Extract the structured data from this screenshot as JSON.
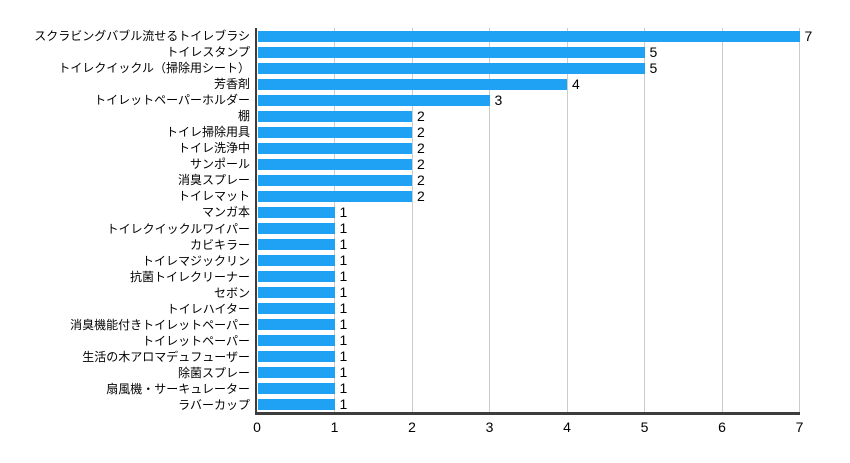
{
  "chart_data": {
    "type": "bar",
    "orientation": "horizontal",
    "title": "",
    "xlabel": "",
    "ylabel": "",
    "categories": [
      "スクラビングバブル流せるトイレブラシ",
      "トイレスタンプ",
      "トイレクイックル（掃除用シート）",
      "芳香剤",
      "トイレットペーパーホルダー",
      "棚",
      "トイレ掃除用具",
      "トイレ洗浄中",
      "サンポール",
      "消臭スプレー",
      "トイレマット",
      "マンガ本",
      "トイレクイックルワイパー",
      "カビキラー",
      "トイレマジックリン",
      "抗菌トイレクリーナー",
      "セボン",
      "トイレハイター",
      "消臭機能付きトイレットペーパー",
      "トイレットペーパー",
      "生活の木アロマデュフューザー",
      "除菌スプレー",
      "扇風機・サーキュレーター",
      "ラバーカップ"
    ],
    "values": [
      7,
      5,
      5,
      4,
      3,
      2,
      2,
      2,
      2,
      2,
      2,
      1,
      1,
      1,
      1,
      1,
      1,
      1,
      1,
      1,
      1,
      1,
      1,
      1
    ],
    "value_labels": [
      "7",
      "5",
      "5",
      "4",
      "3",
      "2",
      "2",
      "2",
      "2",
      "2",
      "2",
      "1",
      "1",
      "1",
      "1",
      "1",
      "1",
      "1",
      "1",
      "1",
      "1",
      "1",
      "1",
      "1"
    ],
    "xlim": [
      0,
      7
    ],
    "x_ticks": [
      "0",
      "1",
      "2",
      "3",
      "4",
      "5",
      "6",
      "7"
    ],
    "grid": true,
    "legend": false,
    "colors": {
      "bar": "#1fa2f4",
      "gridline": "#cccccc",
      "axis": "#3d3d3d",
      "text": "#000000",
      "background": "#ffffff"
    }
  }
}
